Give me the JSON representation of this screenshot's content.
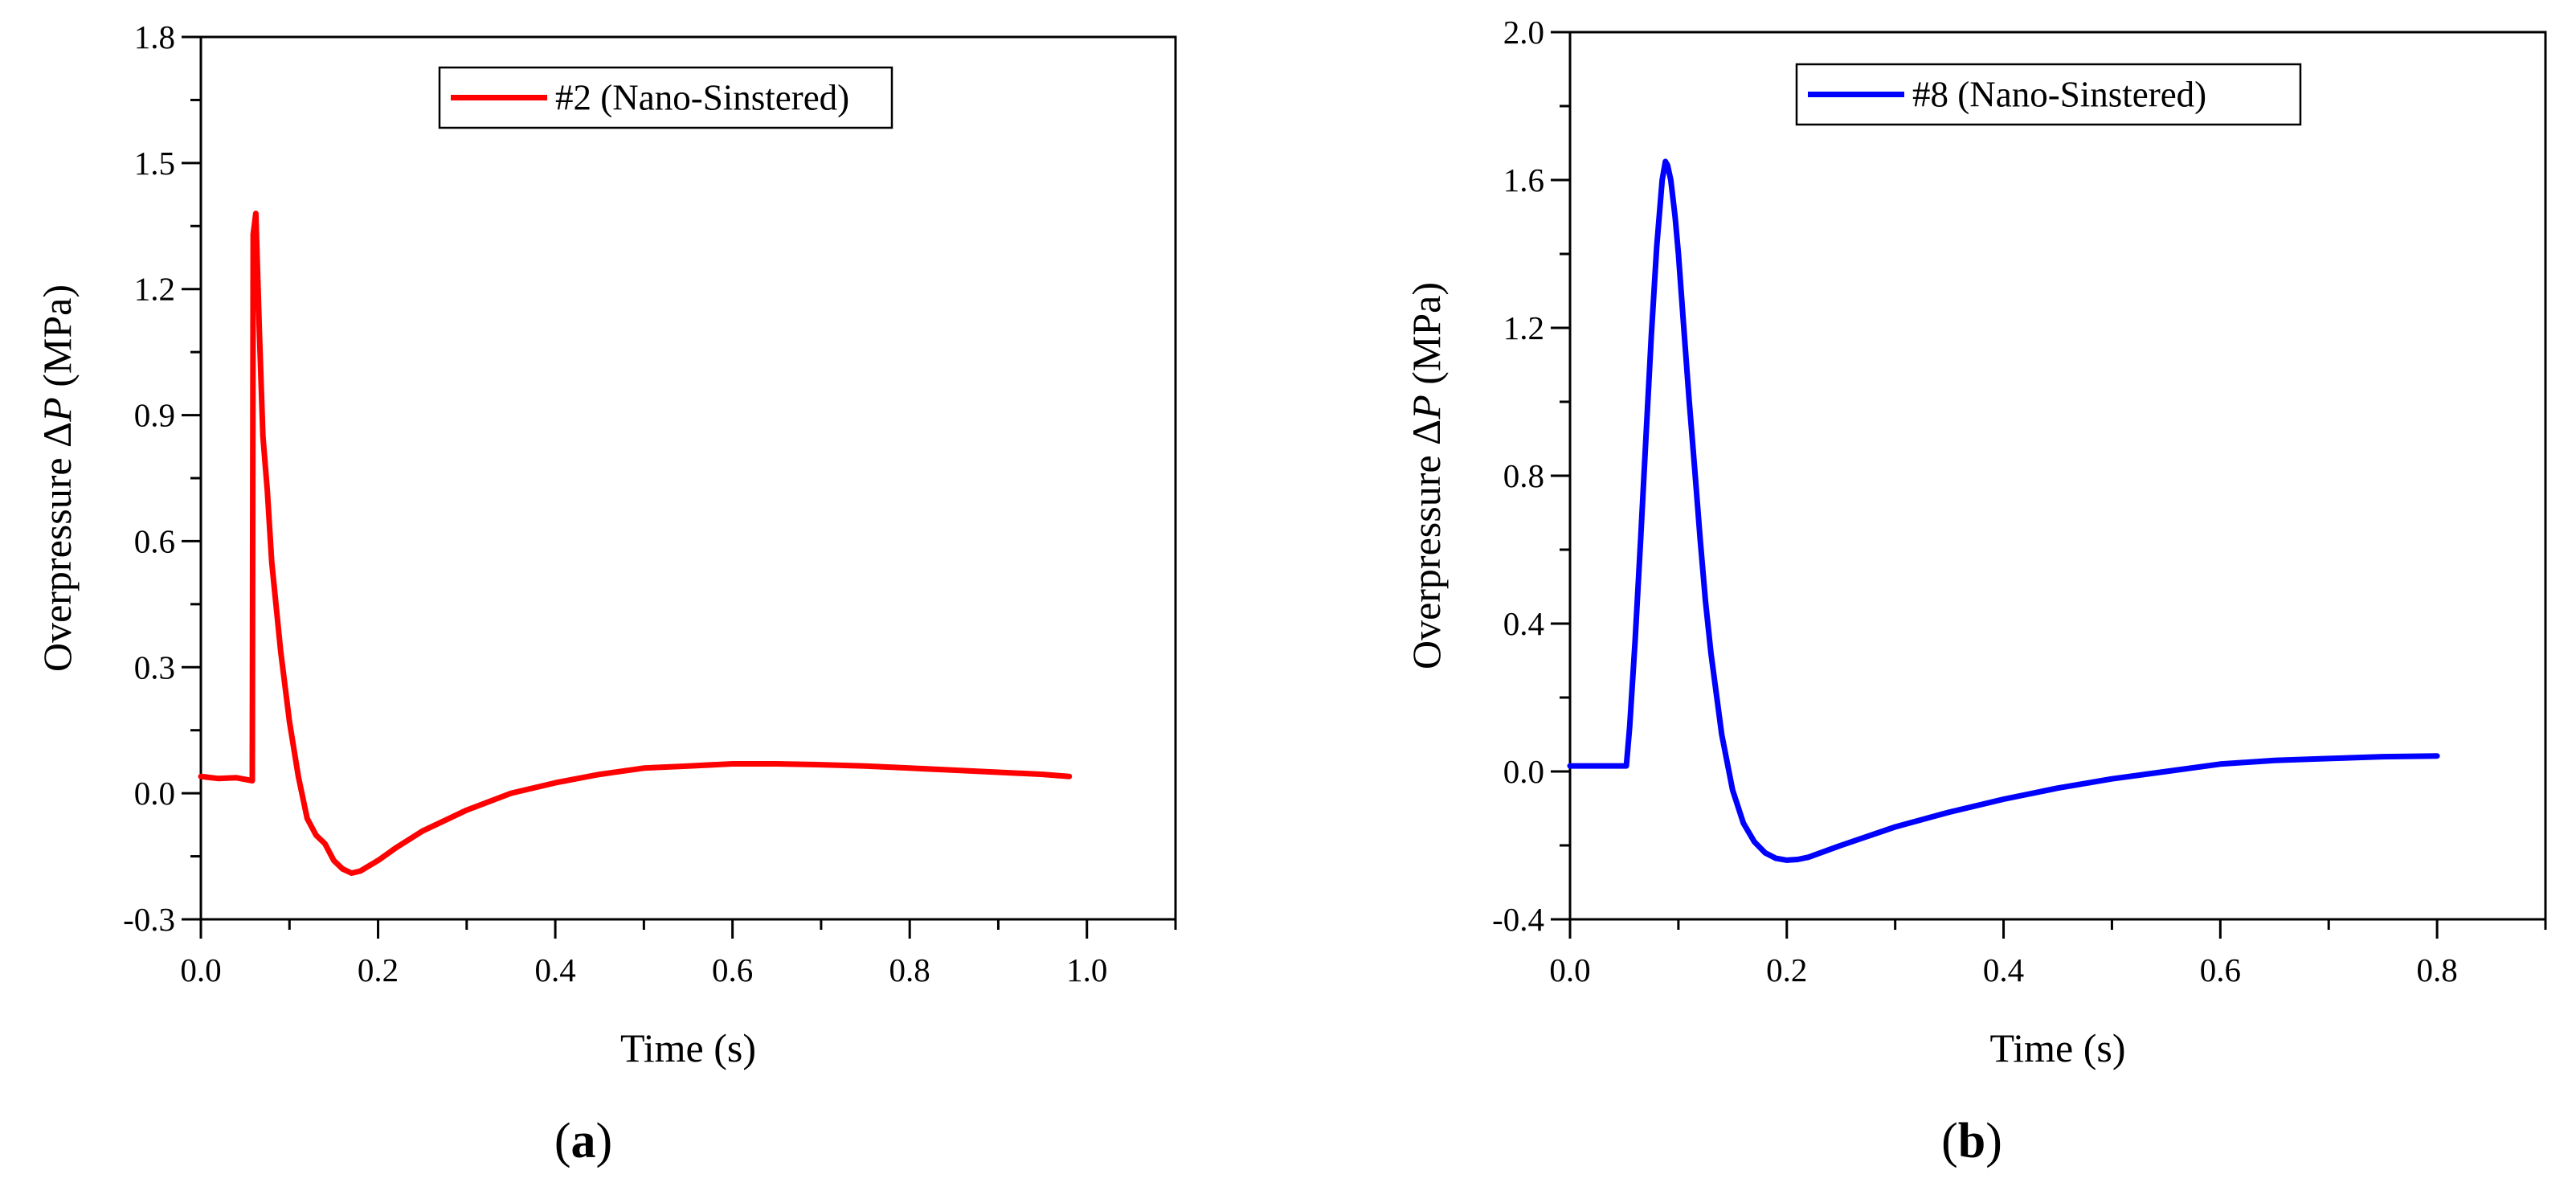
{
  "chart_data": [
    {
      "panel_label": "(a)",
      "panel_letter": "a",
      "type": "line",
      "title": "",
      "xlabel": "Time (s)",
      "ylabel_prefix": "Overpressure Δ",
      "ylabel_var": "P",
      "ylabel_suffix": " (MPa)",
      "xlim": [
        0,
        1.1
      ],
      "ylim": [
        -0.3,
        1.8
      ],
      "x_ticks": [
        0.0,
        0.2,
        0.4,
        0.6,
        0.8,
        1.0
      ],
      "x_tick_labels": [
        "0.0",
        "0.2",
        "0.4",
        "0.6",
        "0.8",
        "1.0"
      ],
      "y_ticks": [
        -0.3,
        0.0,
        0.3,
        0.6,
        0.9,
        1.2,
        1.5,
        1.8
      ],
      "y_tick_labels": [
        "-0.3",
        "0.0",
        "0.3",
        "0.6",
        "0.9",
        "1.2",
        "1.5",
        "1.8"
      ],
      "grid": false,
      "legend_position": "top-center",
      "series": [
        {
          "name": "#2 (Nano-Sinstered)",
          "color": "#ff0000",
          "x": [
            0.0,
            0.02,
            0.04,
            0.058,
            0.059,
            0.062,
            0.066,
            0.07,
            0.075,
            0.08,
            0.09,
            0.1,
            0.11,
            0.12,
            0.13,
            0.14,
            0.15,
            0.16,
            0.17,
            0.18,
            0.2,
            0.22,
            0.25,
            0.3,
            0.35,
            0.4,
            0.45,
            0.5,
            0.55,
            0.6,
            0.65,
            0.7,
            0.75,
            0.8,
            0.85,
            0.9,
            0.95,
            0.98
          ],
          "y": [
            0.04,
            0.035,
            0.037,
            0.03,
            1.33,
            1.38,
            1.1,
            0.85,
            0.72,
            0.55,
            0.34,
            0.17,
            0.04,
            -0.06,
            -0.1,
            -0.12,
            -0.16,
            -0.18,
            -0.19,
            -0.185,
            -0.16,
            -0.13,
            -0.09,
            -0.04,
            0.0,
            0.025,
            0.045,
            0.06,
            0.065,
            0.07,
            0.07,
            0.068,
            0.065,
            0.06,
            0.055,
            0.05,
            0.045,
            0.04
          ]
        }
      ]
    },
    {
      "panel_label": "(b)",
      "panel_letter": "b",
      "type": "line",
      "title": "",
      "xlabel": "Time (s)",
      "ylabel_prefix": "Overpressure Δ",
      "ylabel_var": "P",
      "ylabel_suffix": " (MPa)",
      "xlim": [
        0,
        0.9
      ],
      "ylim": [
        -0.4,
        2.0
      ],
      "x_ticks": [
        0.0,
        0.2,
        0.4,
        0.6,
        0.8
      ],
      "x_tick_labels": [
        "0.0",
        "0.2",
        "0.4",
        "0.6",
        "0.8"
      ],
      "y_ticks": [
        -0.4,
        0.0,
        0.4,
        0.8,
        1.2,
        1.6,
        2.0
      ],
      "y_tick_labels": [
        "-0.4",
        "0.0",
        "0.4",
        "0.8",
        "1.2",
        "1.6",
        "2.0"
      ],
      "grid": false,
      "legend_position": "top-center",
      "series": [
        {
          "name": "#8 (Nano-Sinstered)",
          "color": "#0000ff",
          "x": [
            0.0,
            0.02,
            0.04,
            0.052,
            0.055,
            0.06,
            0.065,
            0.07,
            0.075,
            0.08,
            0.085,
            0.088,
            0.09,
            0.093,
            0.097,
            0.1,
            0.105,
            0.11,
            0.115,
            0.12,
            0.125,
            0.13,
            0.14,
            0.15,
            0.16,
            0.17,
            0.18,
            0.19,
            0.2,
            0.21,
            0.22,
            0.25,
            0.3,
            0.35,
            0.4,
            0.45,
            0.5,
            0.55,
            0.6,
            0.65,
            0.7,
            0.75,
            0.8
          ],
          "y": [
            0.015,
            0.015,
            0.015,
            0.015,
            0.12,
            0.35,
            0.62,
            0.9,
            1.18,
            1.42,
            1.6,
            1.65,
            1.64,
            1.6,
            1.5,
            1.4,
            1.2,
            1.0,
            0.82,
            0.63,
            0.46,
            0.32,
            0.1,
            -0.05,
            -0.14,
            -0.19,
            -0.22,
            -0.235,
            -0.24,
            -0.238,
            -0.232,
            -0.2,
            -0.15,
            -0.11,
            -0.075,
            -0.045,
            -0.02,
            0.0,
            0.02,
            0.03,
            0.035,
            0.04,
            0.042
          ]
        }
      ]
    }
  ]
}
